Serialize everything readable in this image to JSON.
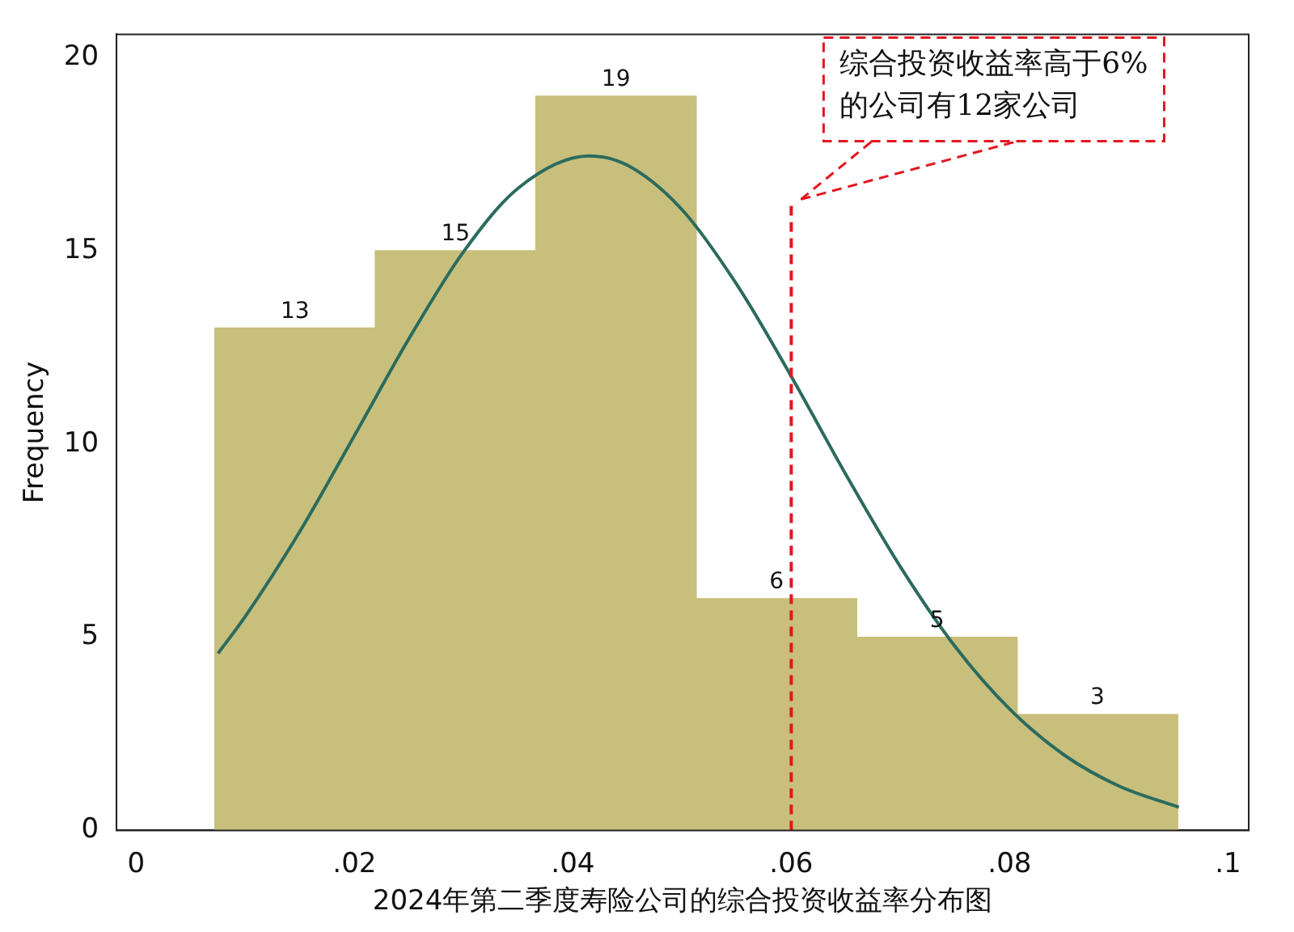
{
  "chart_data": {
    "type": "histogram",
    "xlabel": "2024年第二季度寿险公司的综合投资收益率分布图",
    "ylabel": "Frequency",
    "bins": [
      0.0072,
      0.0219,
      0.0366,
      0.0513,
      0.066,
      0.0807,
      0.0954
    ],
    "values": [
      13,
      15,
      19,
      6,
      5,
      3
    ],
    "color": "#c8bf7c",
    "value_labels": [
      "13",
      "15",
      "19",
      "6",
      "5",
      "3"
    ],
    "series": [
      {
        "type": "line",
        "color": "#2b6b5e",
        "x": [
          0.0075,
          0.01,
          0.015,
          0.02,
          0.025,
          0.03,
          0.035,
          0.0415,
          0.045,
          0.05,
          0.055,
          0.06,
          0.065,
          0.07,
          0.075,
          0.08,
          0.085,
          0.09,
          0.0955
        ],
        "values": [
          4.58,
          5.54,
          7.74,
          10.22,
          12.73,
          14.98,
          16.62,
          17.45,
          17.21,
          16.06,
          14.13,
          11.75,
          9.21,
          6.82,
          4.76,
          3.14,
          1.95,
          1.15,
          0.6
        ]
      }
    ],
    "xlim": [
      -0.0018,
      0.1019
    ],
    "xticks": [
      0,
      {
        "value": 0.02,
        "label": ".02"
      },
      {
        "value": 0.04,
        "label": ".04"
      },
      {
        "value": 0.06,
        "label": ".06"
      },
      {
        "value": 0.08,
        "label": ".08"
      },
      {
        "value": 0.1,
        "label": ".1"
      }
    ],
    "ylim": [
      0,
      20.6
    ],
    "yticks": [
      0,
      5,
      10,
      15,
      20
    ],
    "ref_lines": [
      {
        "axis": "x",
        "value": 0.06,
        "label": "综合投资收益率高于6%\n的公司有12家公司",
        "color": "#e3161e",
        "line_style": "dashed"
      }
    ],
    "grid": false,
    "legend": false
  }
}
